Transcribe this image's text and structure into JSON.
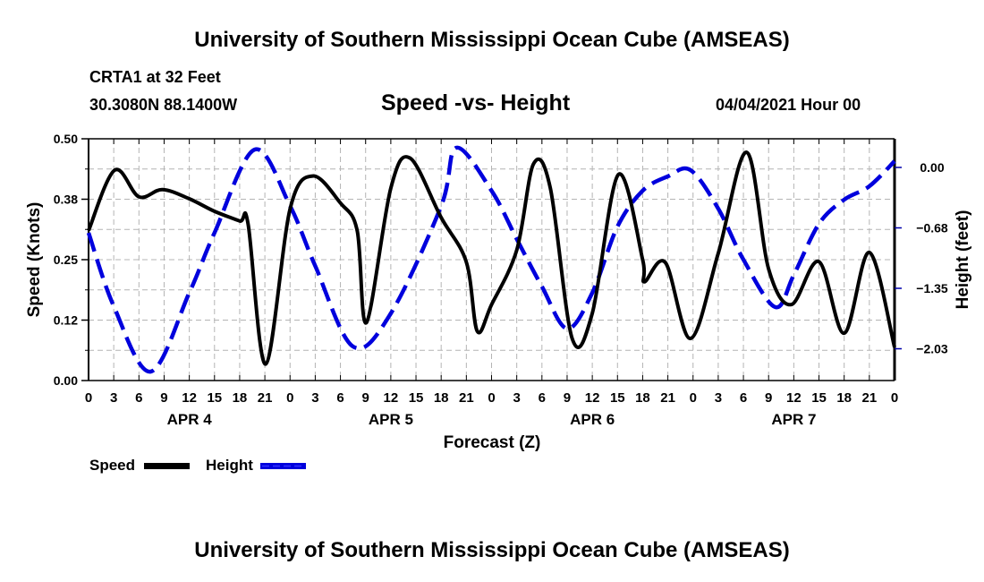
{
  "header": {
    "top_title": "University of Southern Mississippi Ocean Cube (AMSEAS)",
    "station": "CRTA1 at 32 Feet",
    "coords": "30.3080N  88.1400W",
    "datetime": "04/04/2021 Hour 00",
    "bottom_title": "University of Southern Mississippi Ocean Cube (AMSEAS)"
  },
  "chart_data": {
    "type": "line",
    "title": "Speed -vs- Height",
    "xlabel": "Forecast (Z)",
    "ylabel": "Speed (Knots)",
    "y2label": "Height (feet)",
    "xlim": [
      0,
      96
    ],
    "ylim": [
      0,
      0.5
    ],
    "y2lim": [
      -2.38,
      0.32
    ],
    "x_ticks": [
      0,
      3,
      6,
      9,
      12,
      15,
      18,
      21,
      24,
      27,
      30,
      33,
      36,
      39,
      42,
      45,
      48,
      51,
      54,
      57,
      60,
      63,
      66,
      69,
      72,
      75,
      78,
      81,
      84,
      87,
      90,
      93,
      96
    ],
    "x_tick_labels": [
      "0",
      "3",
      "6",
      "9",
      "12",
      "15",
      "18",
      "21",
      "0",
      "3",
      "6",
      "9",
      "12",
      "15",
      "18",
      "21",
      "0",
      "3",
      "6",
      "9",
      "12",
      "15",
      "18",
      "21",
      "0",
      "3",
      "6",
      "9",
      "12",
      "15",
      "18",
      "21",
      "0"
    ],
    "day_labels": [
      {
        "label": "APR 4",
        "x": 12
      },
      {
        "label": "APR 5",
        "x": 36
      },
      {
        "label": "APR 6",
        "x": 60
      },
      {
        "label": "APR 7",
        "x": 84
      }
    ],
    "y_ticks": [
      0.0,
      0.125,
      0.25,
      0.375,
      0.5
    ],
    "y_tick_labels": [
      "0.00",
      "0.12",
      "0.25",
      "0.38",
      "0.50"
    ],
    "y2_ticks": [
      0.0,
      -0.675,
      -1.35,
      -2.025
    ],
    "y2_tick_labels": [
      "0.00",
      "-0.68",
      "-1.35",
      "-2.03"
    ],
    "grid": true,
    "legend_position": "bottom-left",
    "series": [
      {
        "name": "Speed",
        "axis": "left",
        "color": "#000000",
        "style": "solid",
        "x": [
          0,
          3.1,
          6,
          8.8,
          12,
          15,
          18,
          19,
          21.1,
          24,
          26.7,
          30,
          32,
          33.1,
          36,
          38.3,
          42,
          45,
          46.3,
          48,
          51,
          53,
          55,
          57.6,
          60,
          63.1,
          66,
          66.2,
          68.7,
          71.7,
          75,
          78.4,
          81,
          83.7,
          87,
          90,
          93,
          96
        ],
        "values": [
          0.31,
          0.435,
          0.38,
          0.395,
          0.376,
          0.35,
          0.33,
          0.324,
          0.034,
          0.355,
          0.423,
          0.367,
          0.31,
          0.12,
          0.398,
          0.46,
          0.337,
          0.245,
          0.102,
          0.157,
          0.27,
          0.448,
          0.398,
          0.087,
          0.139,
          0.426,
          0.25,
          0.204,
          0.244,
          0.087,
          0.263,
          0.472,
          0.231,
          0.157,
          0.246,
          0.098,
          0.265,
          0.069
        ]
      },
      {
        "name": "Height",
        "axis": "right",
        "color": "#0000dd",
        "style": "dashed",
        "x": [
          0,
          3,
          7.4,
          12,
          15,
          19.8,
          24,
          27,
          31.5,
          36,
          42,
          43.8,
          48,
          51,
          54,
          57,
          60,
          63,
          66,
          69,
          71.7,
          75,
          78,
          81.8,
          84,
          87,
          90,
          93,
          96
        ],
        "values": [
          -0.73,
          -1.55,
          -2.28,
          -1.4,
          -0.73,
          0.2,
          -0.43,
          -1.1,
          -2.0,
          -1.63,
          -0.43,
          0.22,
          -0.26,
          -0.8,
          -1.33,
          -1.8,
          -1.4,
          -0.66,
          -0.26,
          -0.1,
          -0.03,
          -0.46,
          -1.03,
          -1.56,
          -1.2,
          -0.63,
          -0.36,
          -0.21,
          0.07
        ]
      }
    ]
  },
  "legend": {
    "speed_label": "Speed",
    "height_label": "Height"
  }
}
